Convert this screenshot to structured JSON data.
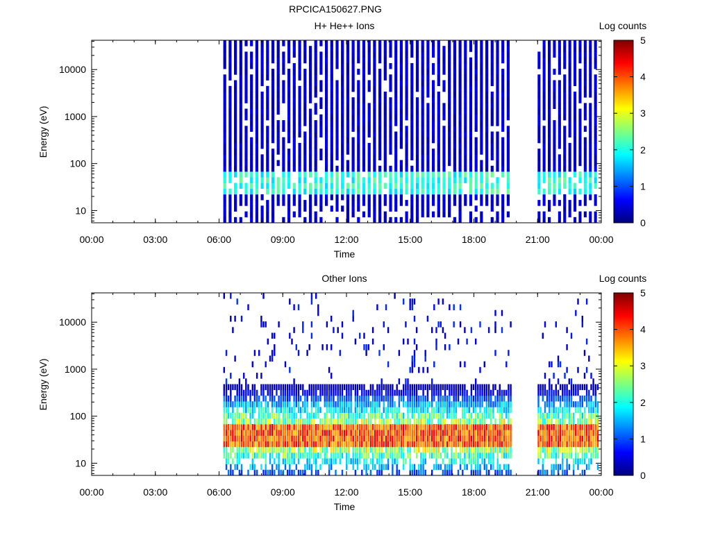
{
  "figure_title": "RPCICA150627.PNG",
  "chart_data": [
    {
      "type": "heatmap",
      "title": "H+ He++ Ions",
      "xlabel": "Time",
      "ylabel": "Energy (eV)",
      "x_ticks": [
        "00:00",
        "03:00",
        "06:00",
        "09:00",
        "12:00",
        "15:00",
        "18:00",
        "21:00",
        "00:00"
      ],
      "xlim_hours": [
        0,
        24
      ],
      "y_scale": "log",
      "ylim": [
        5.5,
        42000
      ],
      "y_ticks": [
        {
          "value": 10,
          "label": "10"
        },
        {
          "value": 100,
          "label": "100"
        },
        {
          "value": 1000,
          "label": "1000"
        },
        {
          "value": 10000,
          "label": "10000"
        }
      ],
      "colorbar": {
        "label": "Log counts",
        "range": [
          0,
          5
        ],
        "ticks": [
          "0",
          "1",
          "2",
          "3",
          "4",
          "5"
        ],
        "colormap": "jet"
      },
      "data_intervals_hours": [
        [
          6.2,
          19.8
        ],
        [
          21.0,
          23.9
        ]
      ],
      "peak_band_eV": [
        25,
        60
      ],
      "peak_log_counts": 2.2,
      "sweep_count": 66
    },
    {
      "type": "heatmap",
      "title": "Other Ions",
      "xlabel": "Time",
      "ylabel": "Energy (eV)",
      "x_ticks": [
        "00:00",
        "03:00",
        "06:00",
        "09:00",
        "12:00",
        "15:00",
        "18:00",
        "21:00",
        "00:00"
      ],
      "xlim_hours": [
        0,
        24
      ],
      "y_scale": "log",
      "ylim": [
        5.5,
        42000
      ],
      "y_ticks": [
        {
          "value": 10,
          "label": "10"
        },
        {
          "value": 100,
          "label": "100"
        },
        {
          "value": 1000,
          "label": "1000"
        },
        {
          "value": 10000,
          "label": "10000"
        }
      ],
      "colorbar": {
        "label": "Log counts",
        "range": [
          0,
          5
        ],
        "ticks": [
          "0",
          "1",
          "2",
          "3",
          "4",
          "5"
        ],
        "colormap": "jet"
      },
      "data_intervals_hours": [
        [
          6.2,
          19.8
        ],
        [
          21.0,
          23.9
        ]
      ],
      "peak_band_eV": [
        25,
        60
      ],
      "peak_log_counts": 4.3,
      "sweep_count": 160
    }
  ]
}
